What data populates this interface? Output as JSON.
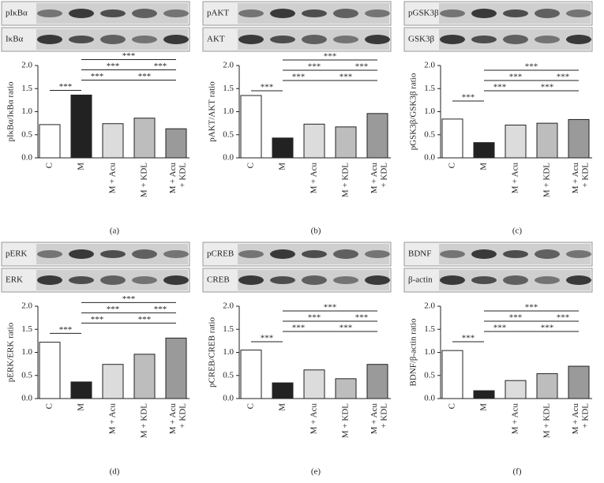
{
  "chart_data": [
    {
      "type": "bar",
      "panel_label": "(a)",
      "blot_labels": [
        "pIκBα",
        "IκBα"
      ],
      "ylabel": "pIκBα/IκBα ratio",
      "categories": [
        "C",
        "M",
        "M + Acu",
        "M + KDL",
        "M + Acu + KDL"
      ],
      "values": [
        0.72,
        1.36,
        0.74,
        0.86,
        0.63
      ],
      "colors": [
        "#ffffff",
        "#222222",
        "#dcdcdc",
        "#bdbdbd",
        "#9a9a9a"
      ],
      "ylim": [
        0,
        2
      ],
      "yticks": [
        {
          "value": 0,
          "label": "0.0"
        },
        0.5,
        {
          "value": 1,
          "label": "1.0"
        },
        1.5,
        {
          "value": 2,
          "label": "2.0"
        }
      ],
      "significance": [
        {
          "groups": [
            "C",
            "M"
          ],
          "label": "***"
        },
        {
          "groups": [
            "M",
            "M + Acu"
          ],
          "label": "***"
        },
        {
          "groups": [
            "M + Acu",
            "M + Acu + KDL"
          ],
          "label": "***"
        },
        {
          "groups": [
            "M",
            "M + KDL"
          ],
          "label": "***"
        },
        {
          "groups": [
            "M + KDL",
            "M + Acu + KDL"
          ],
          "label": "***"
        },
        {
          "groups": [
            "M",
            "M + Acu + KDL"
          ],
          "label": "***"
        }
      ]
    },
    {
      "type": "bar",
      "panel_label": "(b)",
      "blot_labels": [
        "pAKT",
        "AKT"
      ],
      "ylabel": "pAKT/AKT ratio",
      "categories": [
        "C",
        "M",
        "M + Acu",
        "M + KDL",
        "M + Acu + KDL"
      ],
      "values": [
        1.35,
        0.43,
        0.73,
        0.67,
        0.96
      ],
      "colors": [
        "#ffffff",
        "#222222",
        "#dcdcdc",
        "#bdbdbd",
        "#9a9a9a"
      ],
      "ylim": [
        0,
        2
      ],
      "yticks": [
        {
          "value": 0,
          "label": "0.0"
        },
        0.5,
        {
          "value": 1,
          "label": "1.0"
        },
        1.5,
        {
          "value": 2,
          "label": "2.0"
        }
      ],
      "significance": [
        {
          "groups": [
            "C",
            "M"
          ],
          "label": "***"
        },
        {
          "groups": [
            "M",
            "M + Acu"
          ],
          "label": "***"
        },
        {
          "groups": [
            "M + Acu",
            "M + Acu + KDL"
          ],
          "label": "***"
        },
        {
          "groups": [
            "M",
            "M + KDL"
          ],
          "label": "***"
        },
        {
          "groups": [
            "M + KDL",
            "M + Acu + KDL"
          ],
          "label": "***"
        },
        {
          "groups": [
            "M",
            "M + Acu + KDL"
          ],
          "label": "***"
        }
      ]
    },
    {
      "type": "bar",
      "panel_label": "(c)",
      "blot_labels": [
        "pGSK3β",
        "GSK3β"
      ],
      "ylabel": "pGSK3β/GSK3β ratio",
      "categories": [
        "C",
        "M",
        "M + Acu",
        "M + KDL",
        "M + Acu + KDL"
      ],
      "values": [
        0.84,
        0.33,
        0.71,
        0.75,
        0.83
      ],
      "colors": [
        "#ffffff",
        "#222222",
        "#dcdcdc",
        "#bdbdbd",
        "#9a9a9a"
      ],
      "ylim": [
        0,
        2
      ],
      "yticks": [
        {
          "value": 0,
          "label": "0.0"
        },
        0.5,
        {
          "value": 1,
          "label": "1.0"
        },
        1.5,
        {
          "value": 2,
          "label": "2.0"
        }
      ],
      "significance": [
        {
          "groups": [
            "C",
            "M"
          ],
          "label": "***"
        },
        {
          "groups": [
            "M",
            "M + Acu"
          ],
          "label": "***"
        },
        {
          "groups": [
            "M + Acu",
            "M + Acu + KDL"
          ],
          "label": "***"
        },
        {
          "groups": [
            "M",
            "M + KDL"
          ],
          "label": "***"
        },
        {
          "groups": [
            "M + KDL",
            "M + Acu + KDL"
          ],
          "label": "***"
        },
        {
          "groups": [
            "M",
            "M + Acu + KDL"
          ],
          "label": "***"
        }
      ]
    },
    {
      "type": "bar",
      "panel_label": "(d)",
      "blot_labels": [
        "pERK",
        "ERK"
      ],
      "ylabel": "pERK/ERK ratio",
      "categories": [
        "C",
        "M",
        "M + Acu",
        "M + KDL",
        "M + Acu + KDL"
      ],
      "values": [
        1.22,
        0.36,
        0.74,
        0.96,
        1.31
      ],
      "colors": [
        "#ffffff",
        "#222222",
        "#dcdcdc",
        "#bdbdbd",
        "#9a9a9a"
      ],
      "ylim": [
        0,
        2
      ],
      "yticks": [
        {
          "value": 0,
          "label": "0.0"
        },
        0.5,
        {
          "value": 1,
          "label": "1.0"
        },
        1.5,
        {
          "value": 2,
          "label": "2.0"
        }
      ],
      "significance": [
        {
          "groups": [
            "C",
            "M"
          ],
          "label": "***"
        },
        {
          "groups": [
            "M",
            "M + Acu"
          ],
          "label": "***"
        },
        {
          "groups": [
            "M + Acu",
            "M + Acu + KDL"
          ],
          "label": "***"
        },
        {
          "groups": [
            "M",
            "M + KDL"
          ],
          "label": "***"
        },
        {
          "groups": [
            "M + KDL",
            "M + Acu + KDL"
          ],
          "label": "***"
        },
        {
          "groups": [
            "M",
            "M + Acu + KDL"
          ],
          "label": "***"
        }
      ]
    },
    {
      "type": "bar",
      "panel_label": "(e)",
      "blot_labels": [
        "pCREB",
        "CREB"
      ],
      "ylabel": "pCREB/CREB ratio",
      "categories": [
        "C",
        "M",
        "M + Acu",
        "M + KDL",
        "M + Acu + KDL"
      ],
      "values": [
        1.05,
        0.34,
        0.62,
        0.43,
        0.74
      ],
      "colors": [
        "#ffffff",
        "#222222",
        "#dcdcdc",
        "#bdbdbd",
        "#9a9a9a"
      ],
      "ylim": [
        0,
        2
      ],
      "yticks": [
        {
          "value": 0,
          "label": "0.0"
        },
        0.5,
        {
          "value": 1,
          "label": "1.0"
        },
        1.5,
        {
          "value": 2,
          "label": "2.0"
        }
      ],
      "significance": [
        {
          "groups": [
            "C",
            "M"
          ],
          "label": "***"
        },
        {
          "groups": [
            "M",
            "M + Acu"
          ],
          "label": "***"
        },
        {
          "groups": [
            "M + Acu",
            "M + Acu + KDL"
          ],
          "label": "***"
        },
        {
          "groups": [
            "M",
            "M + KDL"
          ],
          "label": "***"
        },
        {
          "groups": [
            "M + KDL",
            "M + Acu + KDL"
          ],
          "label": "***"
        },
        {
          "groups": [
            "M",
            "M + Acu + KDL"
          ],
          "label": "***"
        }
      ]
    },
    {
      "type": "bar",
      "panel_label": "(f)",
      "blot_labels": [
        "BDNF",
        "β-actin"
      ],
      "ylabel": "BDNF/β-actin ratio",
      "categories": [
        "C",
        "M",
        "M + Acu",
        "M + KDL",
        "M + Acu + KDL"
      ],
      "values": [
        1.04,
        0.17,
        0.39,
        0.54,
        0.7
      ],
      "colors": [
        "#ffffff",
        "#222222",
        "#dcdcdc",
        "#bdbdbd",
        "#9a9a9a"
      ],
      "ylim": [
        0,
        2
      ],
      "yticks": [
        {
          "value": 0,
          "label": "0.0"
        },
        0.5,
        {
          "value": 1,
          "label": "1.0"
        },
        1.5,
        {
          "value": 2,
          "label": "2.0"
        }
      ],
      "significance": [
        {
          "groups": [
            "C",
            "M"
          ],
          "label": "***"
        },
        {
          "groups": [
            "M",
            "M + Acu"
          ],
          "label": "***"
        },
        {
          "groups": [
            "M + Acu",
            "M + Acu + KDL"
          ],
          "label": "***"
        },
        {
          "groups": [
            "M",
            "M + KDL"
          ],
          "label": "***"
        },
        {
          "groups": [
            "M + KDL",
            "M + Acu + KDL"
          ],
          "label": "***"
        },
        {
          "groups": [
            "M",
            "M + Acu + KDL"
          ],
          "label": "***"
        }
      ]
    }
  ]
}
